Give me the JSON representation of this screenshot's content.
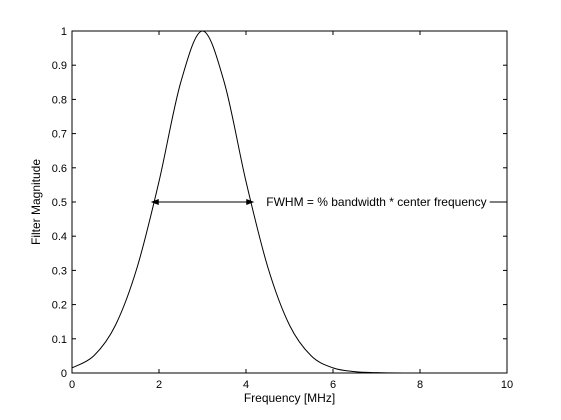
{
  "chart_data": {
    "type": "line",
    "title": "",
    "xlabel": "Frequency [MHz]",
    "ylabel": "Filter Magnitude",
    "xlim": [
      0,
      10
    ],
    "ylim": [
      0,
      1
    ],
    "xticks": [
      0,
      2,
      4,
      6,
      8,
      10
    ],
    "xtick_labels": [
      "0",
      "2",
      "4",
      "6",
      "8",
      "10"
    ],
    "yticks": [
      0,
      0.1,
      0.2,
      0.3,
      0.4,
      0.5,
      0.6,
      0.7,
      0.8,
      0.9,
      1
    ],
    "ytick_labels": [
      "0",
      "0.1",
      "0.2",
      "0.3",
      "0.4",
      "0.5",
      "0.6",
      "0.7",
      "0.8",
      "0.9",
      "1"
    ],
    "grid": false,
    "line_color": "#000000",
    "series": [
      {
        "x": [
          0,
          0.5,
          1,
          1.5,
          2,
          2.5,
          3,
          3.5,
          4,
          4.5,
          5,
          5.5,
          6,
          6.5,
          7,
          8,
          9,
          10
        ],
        "values": [
          0.015,
          0.05,
          0.14,
          0.31,
          0.56,
          0.85,
          1.0,
          0.85,
          0.56,
          0.31,
          0.14,
          0.05,
          0.015,
          0.004,
          0.001,
          0,
          0,
          0
        ]
      }
    ],
    "annotation": {
      "text": "FWHM = % bandwidth * center frequency",
      "y": 0.5,
      "x_start": 1.81,
      "x_end": 4.19
    }
  }
}
